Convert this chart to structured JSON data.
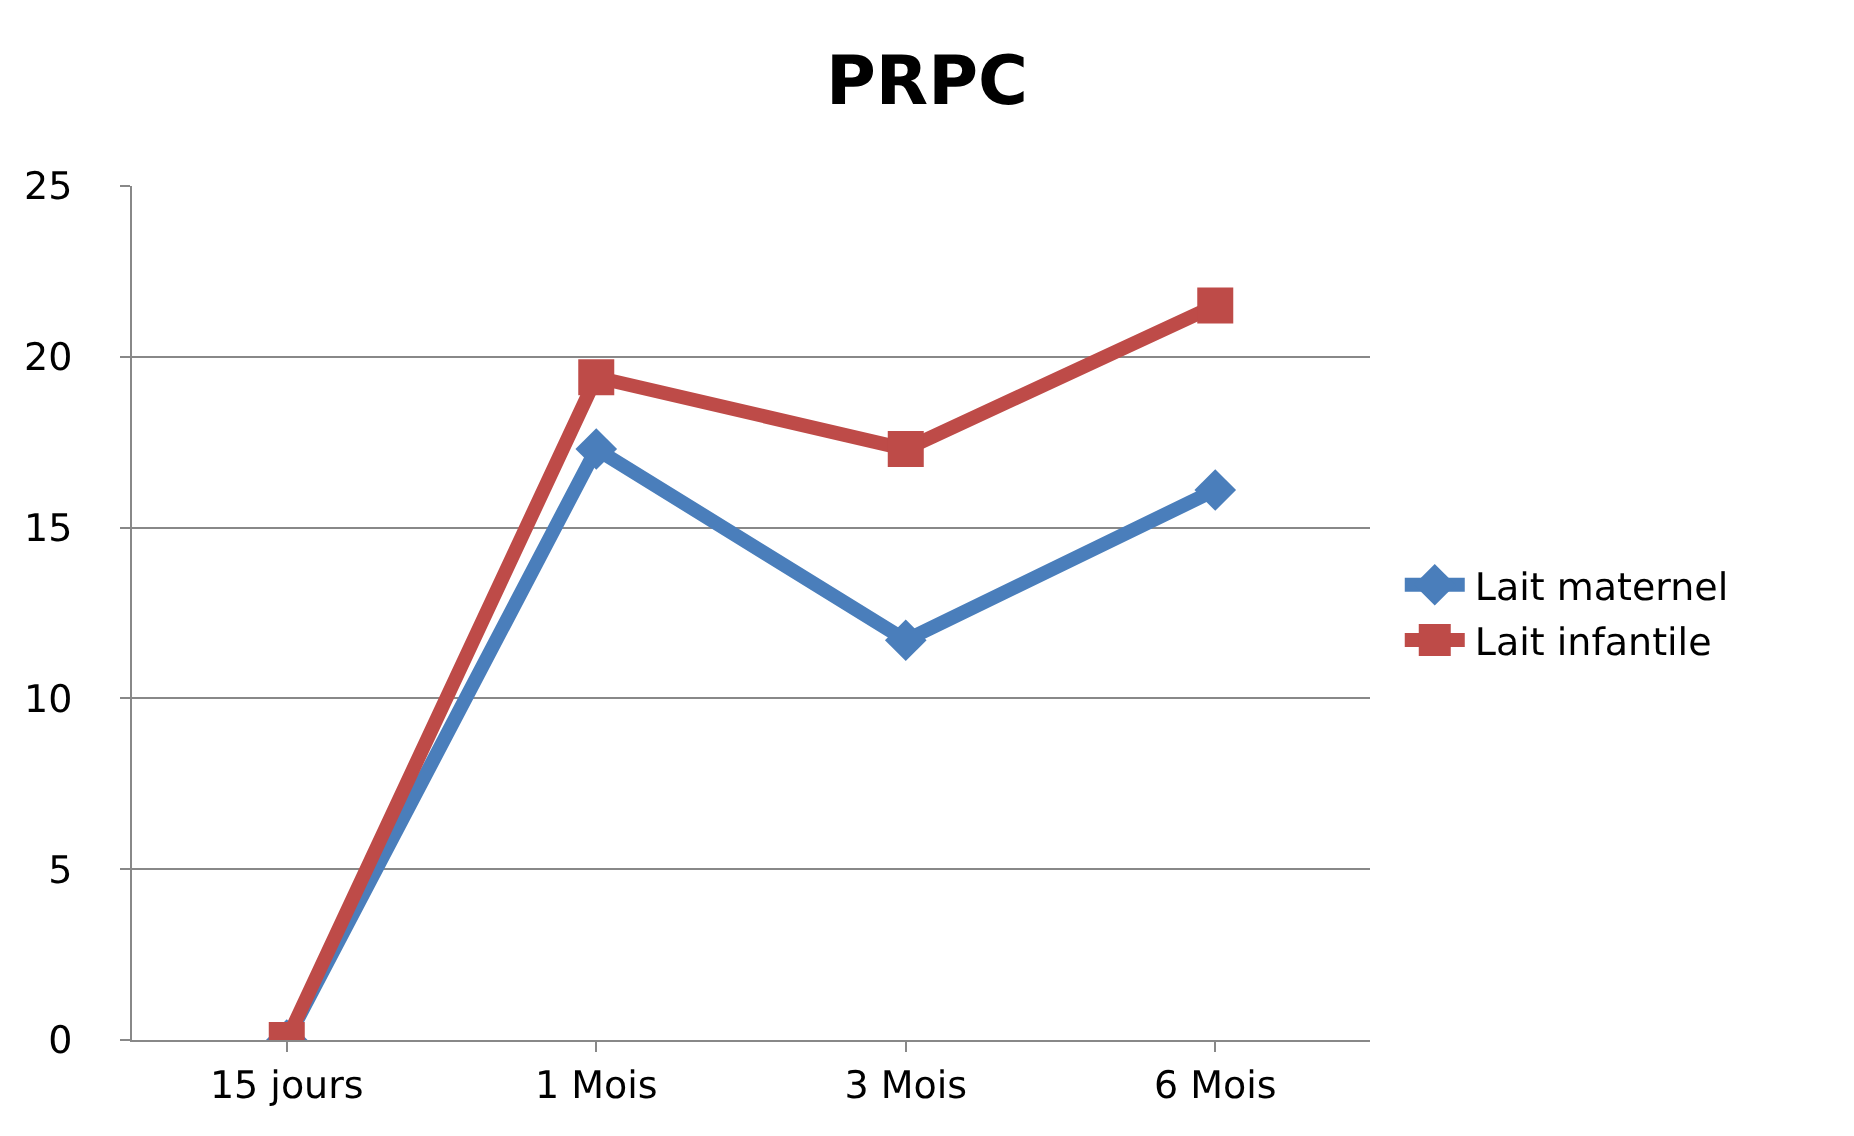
{
  "chart_data": {
    "type": "line",
    "title": "PRPC",
    "categories": [
      "15 jours",
      "1 Mois",
      "3 Mois",
      "6 Mois"
    ],
    "series": [
      {
        "name": "Lait maternel",
        "color": "#4a7ebb",
        "marker": "diamond",
        "values": [
          0,
          17.3,
          11.7,
          16.1
        ]
      },
      {
        "name": "Lait infantile",
        "color": "#be4b48",
        "marker": "square",
        "values": [
          0,
          19.4,
          17.3,
          21.5
        ]
      }
    ],
    "ylim": [
      0,
      25
    ],
    "yticks": [
      0,
      5,
      10,
      15,
      20,
      25
    ],
    "grid": "y",
    "legend": "right",
    "line_style": "solid"
  }
}
